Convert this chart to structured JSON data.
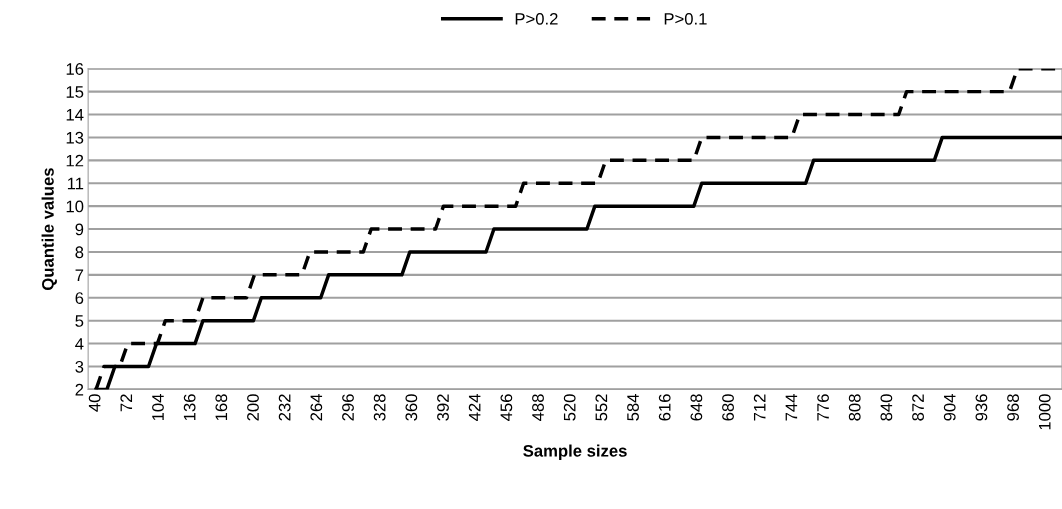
{
  "chart_data": {
    "type": "line",
    "xlabel": "Sample sizes",
    "ylabel": "Quantile values",
    "xlim": [
      32,
      1016
    ],
    "xticks": [
      40,
      72,
      104,
      136,
      168,
      200,
      232,
      264,
      296,
      328,
      360,
      392,
      424,
      456,
      488,
      520,
      552,
      584,
      616,
      648,
      680,
      712,
      744,
      776,
      808,
      840,
      872,
      904,
      936,
      968,
      1000
    ],
    "ylim": [
      2,
      16
    ],
    "yticks": [
      2,
      3,
      4,
      5,
      6,
      7,
      8,
      9,
      10,
      11,
      12,
      13,
      14,
      15,
      16
    ],
    "grid": "y",
    "legend": "top",
    "marker": "none",
    "series": [
      {
        "name": "P>0.2",
        "color": "#000000",
        "line_style": "solid",
        "x": [
          40,
          51,
          59,
          93,
          101,
          140,
          148,
          199,
          207,
          267,
          275,
          349,
          357,
          434,
          442,
          536,
          544,
          644,
          652,
          757,
          765,
          887,
          895,
          1016
        ],
        "values": [
          2,
          2,
          3,
          3,
          4,
          4,
          5,
          5,
          6,
          6,
          7,
          7,
          8,
          8,
          9,
          9,
          10,
          10,
          11,
          11,
          12,
          12,
          13,
          13
        ]
      },
      {
        "name": "P>0.1",
        "color": "#000000",
        "line_style": "dashed",
        "x": [
          40,
          48,
          64,
          72,
          102,
          110,
          140,
          148,
          192,
          200,
          248,
          256,
          310,
          318,
          383,
          391,
          464,
          472,
          547,
          555,
          644,
          652,
          743,
          751,
          851,
          859,
          963,
          971,
          1016
        ],
        "values": [
          2,
          3,
          3,
          4,
          4,
          5,
          5,
          6,
          6,
          7,
          7,
          8,
          8,
          9,
          9,
          10,
          10,
          11,
          11,
          12,
          12,
          13,
          13,
          14,
          14,
          15,
          15,
          16,
          16
        ]
      }
    ]
  }
}
